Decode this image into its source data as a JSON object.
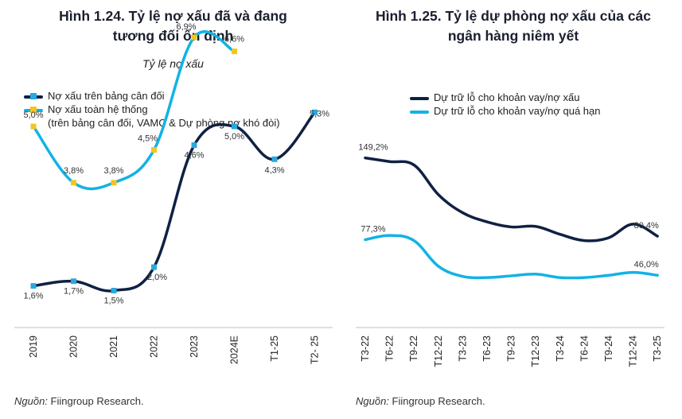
{
  "left": {
    "title_line1": "Hình 1.24. Tỷ lệ nợ xấu đã và đang",
    "title_line2": "tương đối ổn định",
    "subtitle": "Tỷ lệ nợ xấu",
    "legend": {
      "item1": "Nợ xấu trên bảng cân đối",
      "item2": "Nợ xấu toàn hệ thống",
      "item2_note": "(trên bảng cân đối, VAMC & Dự phòng nợ khó đòi)"
    },
    "source_label": "Nguồn:",
    "source_text": " Fiingroup Research."
  },
  "right": {
    "title_line1": "Hình 1.25. Tỷ lệ dự phòng nợ xấu của các",
    "title_line2": "ngân hàng niêm yết",
    "legend": {
      "item1": "Dự trữ lỗ cho khoản vay/nợ xấu",
      "item2": "Dự trữ lỗ cho khoản vay/nợ quá hạn"
    },
    "source_label": "Nguồn:",
    "source_text": " Fiingroup Research."
  },
  "colors": {
    "navy": "#0f2143",
    "cyan": "#12b2e6",
    "blue_marker": "#29a9e1",
    "yellow_marker": "#f3c522",
    "axis": "#bfbfbf"
  },
  "chart_data": [
    {
      "type": "line",
      "title": "Hình 1.24. Tỷ lệ nợ xấu đã và đang tương đối ổn định",
      "subtitle": "Tỷ lệ nợ xấu",
      "categories": [
        "2019",
        "2020",
        "2021",
        "2022",
        "2023",
        "2024E",
        "T1-25",
        "T2- 25"
      ],
      "ylim": [
        0,
        8
      ],
      "grid": false,
      "legend_position": "top-left",
      "series": [
        {
          "name": "Nợ xấu trên bảng cân đối",
          "values": [
            1.6,
            1.7,
            1.5,
            2.0,
            4.6,
            5.0,
            4.3,
            5.3
          ],
          "labels": [
            "1,6%",
            "1,7%",
            "1,5%",
            "2,0%",
            "4,6%",
            "5,0%",
            "4,3%",
            "5,3%"
          ]
        },
        {
          "name": "Nợ xấu toàn hệ thống",
          "values": [
            5.0,
            3.8,
            3.8,
            4.5,
            6.9,
            6.6,
            null,
            null
          ],
          "labels": [
            "5,0%",
            "3,8%",
            "3,8%",
            "4,5%",
            "6,9%",
            "6,6%",
            "",
            ""
          ]
        }
      ]
    },
    {
      "type": "line",
      "title": "Hình 1.25. Tỷ lệ dự phòng nợ xấu của các ngân hàng niêm yết",
      "categories": [
        "T3-22",
        "T6-22",
        "T9-22",
        "T12-22",
        "T3-23",
        "T6-23",
        "T9-23",
        "T12-23",
        "T3-24",
        "T6-24",
        "T9-24",
        "T12-24",
        "T3-25"
      ],
      "ylim": [
        0,
        180
      ],
      "grid": false,
      "legend_position": "top",
      "series": [
        {
          "name": "Dự trữ lỗ cho khoản vay/nợ xấu",
          "values": [
            149.2,
            146.0,
            143.0,
            117.0,
            101.0,
            93.0,
            88.5,
            89.0,
            82.0,
            76.5,
            79.0,
            91.0,
            80.4
          ],
          "labels": [
            "149,2%",
            "",
            "",
            "",
            "",
            "",
            "",
            "",
            "",
            "",
            "",
            "",
            "80,4%"
          ]
        },
        {
          "name": "Dự trữ lỗ cho khoản vay/nợ quá hạn",
          "values": [
            77.3,
            81.0,
            76.5,
            54.0,
            45.0,
            44.0,
            45.5,
            47.0,
            44.0,
            44.0,
            46.0,
            48.5,
            46.0
          ],
          "labels": [
            "77,3%",
            "",
            "",
            "",
            "",
            "",
            "",
            "",
            "",
            "",
            "",
            "",
            "46,0%"
          ]
        }
      ]
    }
  ]
}
